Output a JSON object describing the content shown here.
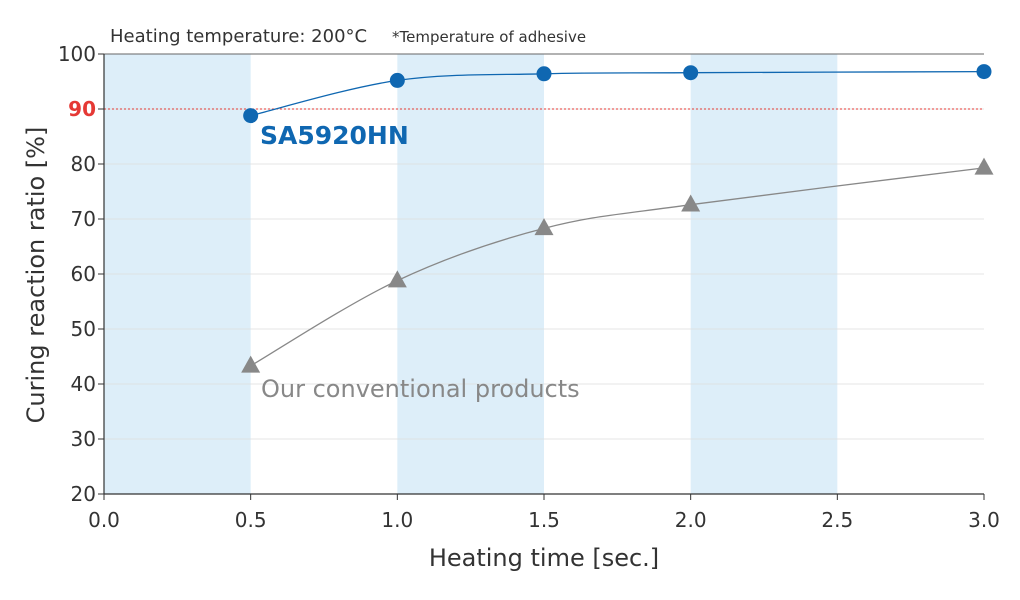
{
  "chart_data": {
    "type": "line",
    "header": {
      "condition": "Heating temperature: 200°C",
      "note": "*Temperature of adhesive"
    },
    "xlabel": "Heating time [sec.]",
    "ylabel": "Curing reaction ratio [%]",
    "xlim": [
      0.0,
      3.0
    ],
    "ylim": [
      20,
      100
    ],
    "x_ticks": [
      "0.0",
      "0.5",
      "1.0",
      "1.5",
      "2.0",
      "2.5",
      "3.0"
    ],
    "y_ticks": [
      "20",
      "30",
      "40",
      "50",
      "60",
      "70",
      "80",
      "90",
      "100"
    ],
    "reference_line": {
      "y": 90,
      "label": "90",
      "color": "#e53935"
    },
    "shaded_intervals": [
      [
        0.0,
        0.5
      ],
      [
        1.0,
        1.5
      ],
      [
        2.0,
        2.5
      ]
    ],
    "grid": true,
    "series": [
      {
        "name": "SA5920HN",
        "marker": "circle",
        "color": "#0f67b1",
        "x": [
          0.5,
          1.0,
          1.5,
          2.0,
          3.0
        ],
        "y": [
          88.8,
          95.2,
          96.4,
          96.6,
          96.8
        ]
      },
      {
        "name": "Our conventional products",
        "marker": "triangle",
        "color": "#888888",
        "x": [
          0.5,
          1.0,
          1.5,
          2.0,
          3.0
        ],
        "y": [
          43.3,
          58.8,
          68.3,
          72.6,
          79.3
        ]
      }
    ],
    "colors": {
      "shade": "#ddeef9",
      "grid": "#dcdcdc",
      "axis": "#333333"
    }
  }
}
